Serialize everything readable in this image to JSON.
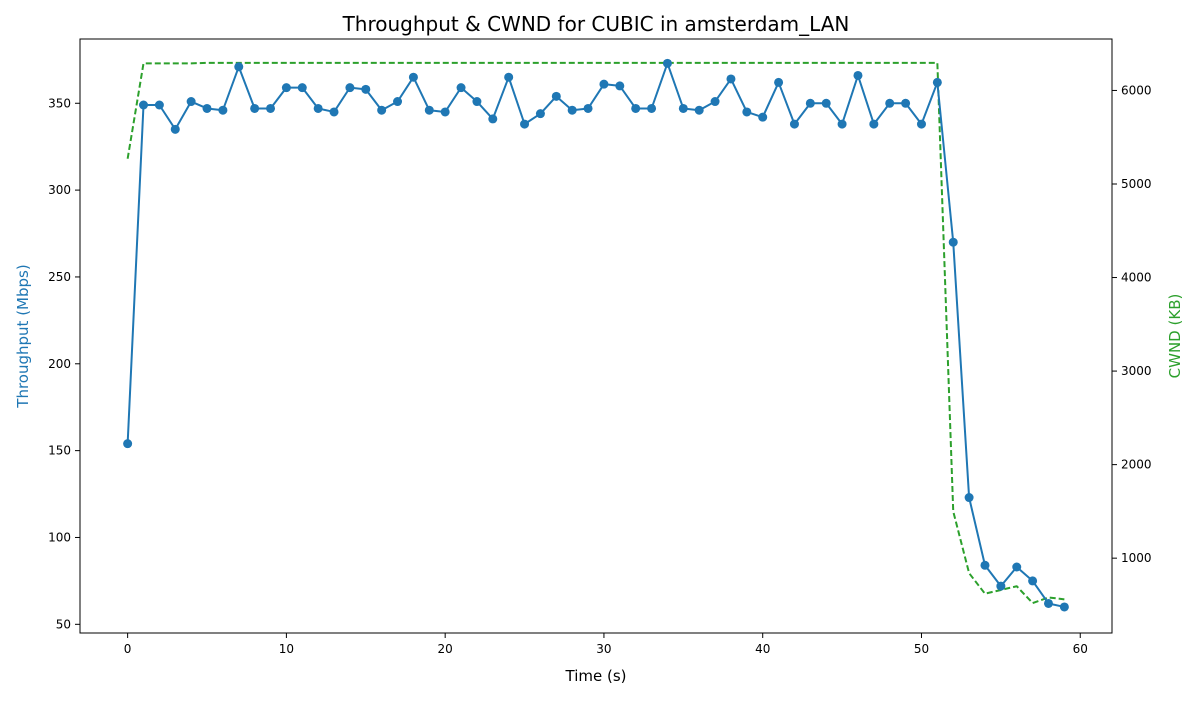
{
  "chart_data": {
    "type": "line",
    "title": "Throughput & CWND for CUBIC in amsterdam_LAN",
    "xlabel": "Time (s)",
    "ylabel": "Throughput (Mbps)",
    "y2label": "CWND (KB)",
    "xlim": [
      -3,
      62
    ],
    "ylim": [
      45,
      387
    ],
    "y2lim": [
      200,
      6550
    ],
    "grid": false,
    "x_ticks": [
      0,
      10,
      20,
      30,
      40,
      50,
      60
    ],
    "y_ticks": [
      50,
      100,
      150,
      200,
      250,
      300,
      350
    ],
    "y2_ticks": [
      1000,
      2000,
      3000,
      4000,
      5000,
      6000
    ],
    "colors": {
      "throughput": "#1f77b4",
      "cwnd": "#2ca02c",
      "axis": "#000000"
    },
    "series": [
      {
        "axis": "left",
        "style": "solid-with-markers",
        "x": [
          0,
          1,
          2,
          3,
          4,
          5,
          6,
          7,
          8,
          9,
          10,
          11,
          12,
          13,
          14,
          15,
          16,
          17,
          18,
          19,
          20,
          21,
          22,
          23,
          24,
          25,
          26,
          27,
          28,
          29,
          30,
          31,
          32,
          33,
          34,
          35,
          36,
          37,
          38,
          39,
          40,
          41,
          42,
          43,
          44,
          45,
          46,
          47,
          48,
          49,
          50,
          51,
          52,
          53,
          54,
          55,
          56,
          57,
          58,
          59
        ],
        "values": [
          154,
          349,
          349,
          335,
          351,
          347,
          346,
          371,
          347,
          347,
          359,
          359,
          347,
          345,
          359,
          358,
          346,
          351,
          365,
          346,
          345,
          359,
          351,
          341,
          365,
          338,
          344,
          354,
          346,
          347,
          361,
          360,
          347,
          347,
          373,
          347,
          346,
          351,
          364,
          345,
          342,
          362,
          338,
          350,
          350,
          338,
          366,
          338,
          350,
          350,
          338,
          362,
          270,
          123,
          84,
          72,
          83,
          75,
          62,
          60
        ]
      },
      {
        "axis": "right",
        "style": "dashed",
        "x": [
          0,
          1,
          2,
          3,
          4,
          5,
          6,
          7,
          8,
          9,
          10,
          11,
          12,
          13,
          14,
          15,
          16,
          17,
          18,
          19,
          20,
          21,
          22,
          23,
          24,
          25,
          26,
          27,
          28,
          29,
          30,
          31,
          32,
          33,
          34,
          35,
          36,
          37,
          38,
          39,
          40,
          41,
          42,
          43,
          44,
          45,
          46,
          47,
          48,
          49,
          50,
          51,
          52,
          53,
          54,
          55,
          56,
          57,
          58,
          59
        ],
        "values": [
          5270,
          6290,
          6290,
          6290,
          6290,
          6295,
          6295,
          6295,
          6295,
          6295,
          6295,
          6295,
          6295,
          6295,
          6295,
          6295,
          6295,
          6295,
          6295,
          6295,
          6295,
          6295,
          6295,
          6295,
          6295,
          6295,
          6295,
          6295,
          6295,
          6295,
          6295,
          6295,
          6295,
          6295,
          6295,
          6295,
          6295,
          6295,
          6295,
          6295,
          6295,
          6295,
          6295,
          6295,
          6295,
          6295,
          6295,
          6295,
          6295,
          6295,
          6295,
          6295,
          1500,
          840,
          620,
          660,
          700,
          520,
          580,
          560
        ]
      }
    ]
  }
}
